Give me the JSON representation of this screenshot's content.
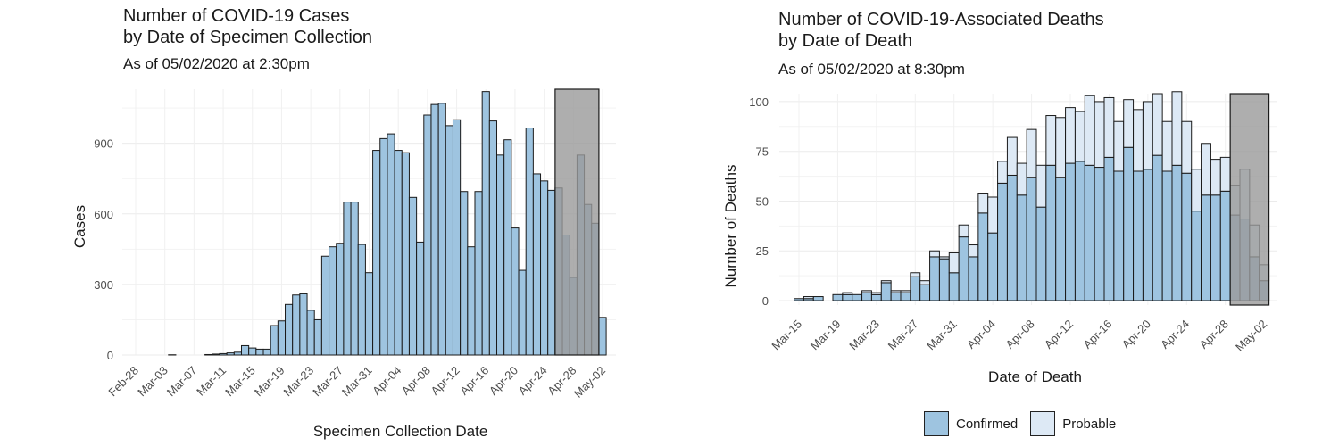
{
  "chart_data": [
    {
      "type": "bar",
      "title_line1": "Number of COVID-19 Cases",
      "title_line2": "by Date of Specimen Collection",
      "subtitle": "As of 05/02/2020 at 2:30pm",
      "xlabel": "Specimen Collection Date",
      "ylabel": "Cases",
      "ylim": [
        0,
        1130
      ],
      "yticks": [
        0,
        300,
        600,
        900
      ],
      "xtick_labels": [
        "Feb-28",
        "Mar-03",
        "Mar-07",
        "Mar-11",
        "Mar-15",
        "Mar-19",
        "Mar-23",
        "Mar-27",
        "Mar-31",
        "Apr-04",
        "Apr-08",
        "Apr-12",
        "Apr-16",
        "Apr-20",
        "Apr-24",
        "Apr-28",
        "May-02"
      ],
      "x_start": "Feb-28",
      "dates_first": "Mar-04",
      "values": [
        1,
        0,
        0,
        0,
        0,
        2,
        4,
        6,
        9,
        12,
        40,
        30,
        25,
        25,
        125,
        145,
        215,
        255,
        260,
        190,
        150,
        420,
        460,
        475,
        650,
        650,
        470,
        350,
        870,
        920,
        940,
        870,
        860,
        670,
        480,
        1020,
        1065,
        1070,
        975,
        1000,
        695,
        460,
        695,
        1120,
        995,
        850,
        915,
        540,
        360,
        965,
        770,
        740,
        700,
        710,
        510,
        330,
        850,
        640,
        560,
        160
      ],
      "shaded_region": {
        "from": "Apr-26",
        "to": "May-02",
        "top": 1130
      },
      "grid": true
    },
    {
      "type": "bar",
      "stacked": true,
      "title_line1": "Number of COVID-19-Associated Deaths",
      "title_line2": "by Date of Death",
      "subtitle": "As of 05/02/2020 at 8:30pm",
      "xlabel": "Date of Death",
      "ylabel": "Number of Deaths",
      "ylim": [
        0,
        104
      ],
      "yticks": [
        0,
        25,
        50,
        75,
        100
      ],
      "xtick_labels": [
        "Mar-15",
        "Mar-19",
        "Mar-23",
        "Mar-27",
        "Mar-31",
        "Apr-04",
        "Apr-08",
        "Apr-12",
        "Apr-16",
        "Apr-20",
        "Apr-24",
        "Apr-28",
        "May-02"
      ],
      "x_start": "Mar-15",
      "dates_first": "Mar-15",
      "series": [
        {
          "name": "Confirmed",
          "color": "#9ec4e0",
          "values": [
            1,
            1,
            2,
            0,
            3,
            3,
            3,
            4,
            3,
            9,
            4,
            4,
            12,
            8,
            22,
            21,
            14,
            32,
            22,
            44,
            34,
            59,
            63,
            53,
            62,
            47,
            68,
            62,
            69,
            70,
            68,
            67,
            72,
            65,
            77,
            65,
            66,
            73,
            65,
            68,
            64,
            45,
            53,
            53,
            55,
            43,
            41,
            22,
            10,
            0
          ]
        },
        {
          "name": "Probable",
          "color": "#dde9f5",
          "values": [
            0,
            1,
            0,
            0,
            0,
            1,
            0,
            1,
            1,
            1,
            1,
            1,
            2,
            2,
            3,
            1,
            10,
            6,
            6,
            10,
            18,
            11,
            19,
            16,
            24,
            21,
            25,
            30,
            28,
            25,
            35,
            33,
            30,
            25,
            24,
            31,
            34,
            31,
            25,
            37,
            26,
            21,
            26,
            18,
            17,
            15,
            25,
            16,
            8,
            0
          ]
        }
      ],
      "shaded_region": {
        "from": "Apr-29",
        "to": "May-03",
        "top": 104
      },
      "legend": "bottom",
      "grid": true
    }
  ]
}
